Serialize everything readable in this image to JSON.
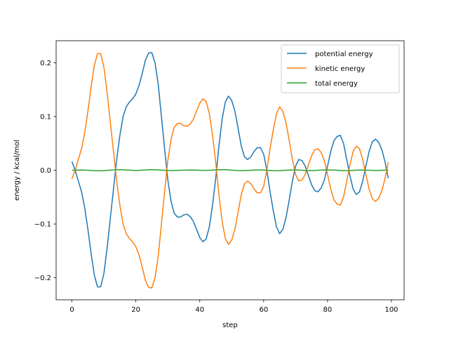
{
  "chart_data": {
    "type": "line",
    "title": "",
    "xlabel": "step",
    "ylabel": "energy / kcal/mol",
    "xlim": [
      -4.95,
      103.95
    ],
    "ylim": [
      -0.241,
      0.241
    ],
    "xticks": [
      0,
      20,
      40,
      60,
      80,
      100
    ],
    "yticks": [
      -0.2,
      -0.1,
      0.0,
      0.1,
      0.2
    ],
    "xtick_labels": [
      "0",
      "20",
      "40",
      "60",
      "80",
      "100"
    ],
    "ytick_labels": [
      "−0.2",
      "−0.1",
      "0.0",
      "0.1",
      "0.2"
    ],
    "grid": false,
    "legend_position": "top-right",
    "x": [
      0,
      1,
      2,
      3,
      4,
      5,
      6,
      7,
      8,
      9,
      10,
      11,
      12,
      13,
      14,
      15,
      16,
      17,
      18,
      19,
      20,
      21,
      22,
      23,
      24,
      25,
      26,
      27,
      28,
      29,
      30,
      31,
      32,
      33,
      34,
      35,
      36,
      37,
      38,
      39,
      40,
      41,
      42,
      43,
      44,
      45,
      46,
      47,
      48,
      49,
      50,
      51,
      52,
      53,
      54,
      55,
      56,
      57,
      58,
      59,
      60,
      61,
      62,
      63,
      64,
      65,
      66,
      67,
      68,
      69,
      70,
      71,
      72,
      73,
      74,
      75,
      76,
      77,
      78,
      79,
      80,
      81,
      82,
      83,
      84,
      85,
      86,
      87,
      88,
      89,
      90,
      91,
      92,
      93,
      94,
      95,
      96,
      97,
      98,
      99
    ],
    "series": [
      {
        "name": "potential energy",
        "color": "#1f77b4",
        "values": [
          0.016,
          0.0,
          -0.02,
          -0.04,
          -0.07,
          -0.11,
          -0.155,
          -0.195,
          -0.217,
          -0.217,
          -0.192,
          -0.145,
          -0.09,
          -0.035,
          0.02,
          0.065,
          0.1,
          0.118,
          0.127,
          0.133,
          0.142,
          0.158,
          0.18,
          0.205,
          0.218,
          0.219,
          0.2,
          0.16,
          0.1,
          0.04,
          -0.018,
          -0.057,
          -0.08,
          -0.087,
          -0.087,
          -0.083,
          -0.082,
          -0.086,
          -0.095,
          -0.11,
          -0.125,
          -0.133,
          -0.128,
          -0.105,
          -0.065,
          -0.015,
          0.045,
          0.095,
          0.127,
          0.138,
          0.13,
          0.11,
          0.078,
          0.045,
          0.025,
          0.02,
          0.025,
          0.035,
          0.042,
          0.042,
          0.03,
          0.0,
          -0.04,
          -0.075,
          -0.105,
          -0.118,
          -0.11,
          -0.088,
          -0.055,
          -0.02,
          0.008,
          0.02,
          0.018,
          0.008,
          -0.01,
          -0.027,
          -0.038,
          -0.04,
          -0.033,
          -0.018,
          0.008,
          0.035,
          0.055,
          0.063,
          0.065,
          0.05,
          0.02,
          -0.01,
          -0.035,
          -0.045,
          -0.04,
          -0.02,
          0.008,
          0.035,
          0.053,
          0.058,
          0.052,
          0.038,
          0.015,
          -0.015
        ]
      },
      {
        "name": "kinetic energy",
        "color": "#ff7f0e",
        "values": [
          -0.016,
          0.0,
          0.02,
          0.04,
          0.07,
          0.11,
          0.155,
          0.195,
          0.217,
          0.217,
          0.192,
          0.145,
          0.09,
          0.035,
          -0.02,
          -0.065,
          -0.1,
          -0.118,
          -0.127,
          -0.133,
          -0.142,
          -0.158,
          -0.18,
          -0.205,
          -0.218,
          -0.219,
          -0.2,
          -0.16,
          -0.1,
          -0.04,
          0.018,
          0.057,
          0.08,
          0.087,
          0.087,
          0.083,
          0.082,
          0.086,
          0.095,
          0.11,
          0.125,
          0.133,
          0.128,
          0.105,
          0.065,
          0.015,
          -0.045,
          -0.095,
          -0.127,
          -0.138,
          -0.13,
          -0.11,
          -0.078,
          -0.045,
          -0.025,
          -0.02,
          -0.025,
          -0.035,
          -0.042,
          -0.042,
          -0.03,
          0.0,
          0.04,
          0.075,
          0.105,
          0.118,
          0.11,
          0.088,
          0.055,
          0.02,
          -0.008,
          -0.02,
          -0.018,
          -0.008,
          0.01,
          0.027,
          0.038,
          0.04,
          0.033,
          0.018,
          -0.008,
          -0.035,
          -0.055,
          -0.063,
          -0.065,
          -0.05,
          -0.02,
          0.01,
          0.035,
          0.045,
          0.04,
          0.02,
          -0.008,
          -0.035,
          -0.053,
          -0.058,
          -0.052,
          -0.038,
          -0.015,
          0.015
        ]
      },
      {
        "name": "total energy",
        "color": "#2ca02c",
        "values": [
          0.0,
          0.0002,
          0.0004,
          0.0005,
          0.0003,
          0.0,
          -0.0004,
          -0.0008,
          -0.001,
          -0.0009,
          -0.0006,
          -0.0002,
          0.0002,
          0.0006,
          0.0009,
          0.001,
          0.0008,
          0.0005,
          0.0001,
          -0.0002,
          -0.0003,
          -0.0002,
          0.0001,
          0.0005,
          0.0009,
          0.0011,
          0.001,
          0.0007,
          0.0003,
          -0.0001,
          -0.0004,
          -0.0005,
          -0.0004,
          -0.0002,
          0.0,
          0.0002,
          0.0004,
          0.0005,
          0.0004,
          0.0002,
          0.0,
          -0.0002,
          -0.0002,
          0.0,
          0.0003,
          0.0007,
          0.001,
          0.0011,
          0.0009,
          0.0006,
          0.0002,
          -0.0002,
          -0.0005,
          -0.0006,
          -0.0005,
          -0.0003,
          0.0,
          0.0003,
          0.0005,
          0.0006,
          0.0004,
          0.0,
          -0.0004,
          -0.0007,
          -0.0008,
          -0.0006,
          -0.0003,
          0.0,
          0.0003,
          0.0005,
          0.0005,
          0.0003,
          0.0,
          -0.0003,
          -0.0005,
          -0.0005,
          -0.0003,
          0.0,
          0.0003,
          0.0005,
          0.0006,
          0.0005,
          0.0003,
          0.0,
          -0.0003,
          -0.0005,
          -0.0006,
          -0.0004,
          -0.0001,
          0.0002,
          0.0004,
          0.0004,
          0.0002,
          0.0,
          -0.0002,
          -0.0003,
          -0.0003,
          -0.0001,
          0.0001,
          0.0002
        ]
      }
    ]
  }
}
